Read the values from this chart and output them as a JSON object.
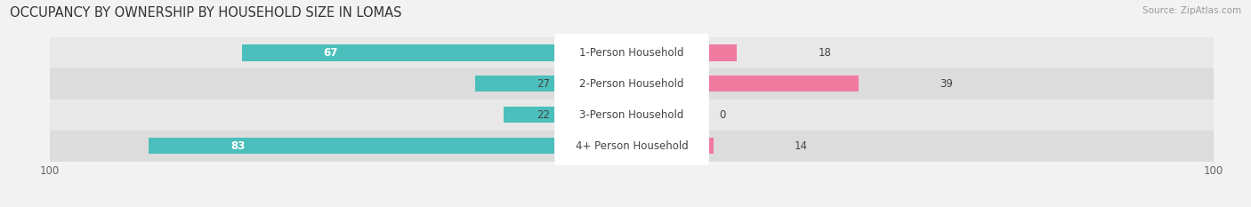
{
  "title": "OCCUPANCY BY OWNERSHIP BY HOUSEHOLD SIZE IN LOMAS",
  "source": "Source: ZipAtlas.com",
  "categories": [
    "1-Person Household",
    "2-Person Household",
    "3-Person Household",
    "4+ Person Household"
  ],
  "owner_values": [
    67,
    27,
    22,
    83
  ],
  "renter_values": [
    18,
    39,
    0,
    14
  ],
  "max_value": 100,
  "owner_color": "#4BBFBB",
  "renter_color": "#F07AA0",
  "bg_color": "#F2F2F2",
  "row_colors": [
    "#E8E8E8",
    "#DCDCDC",
    "#E8E8E8",
    "#DCDCDC"
  ],
  "label_bg_color": "#FFFFFF",
  "title_fontsize": 10.5,
  "label_fontsize": 8.5,
  "value_fontsize": 8.5,
  "tick_fontsize": 8.5,
  "legend_fontsize": 8.5,
  "bar_height": 0.52
}
